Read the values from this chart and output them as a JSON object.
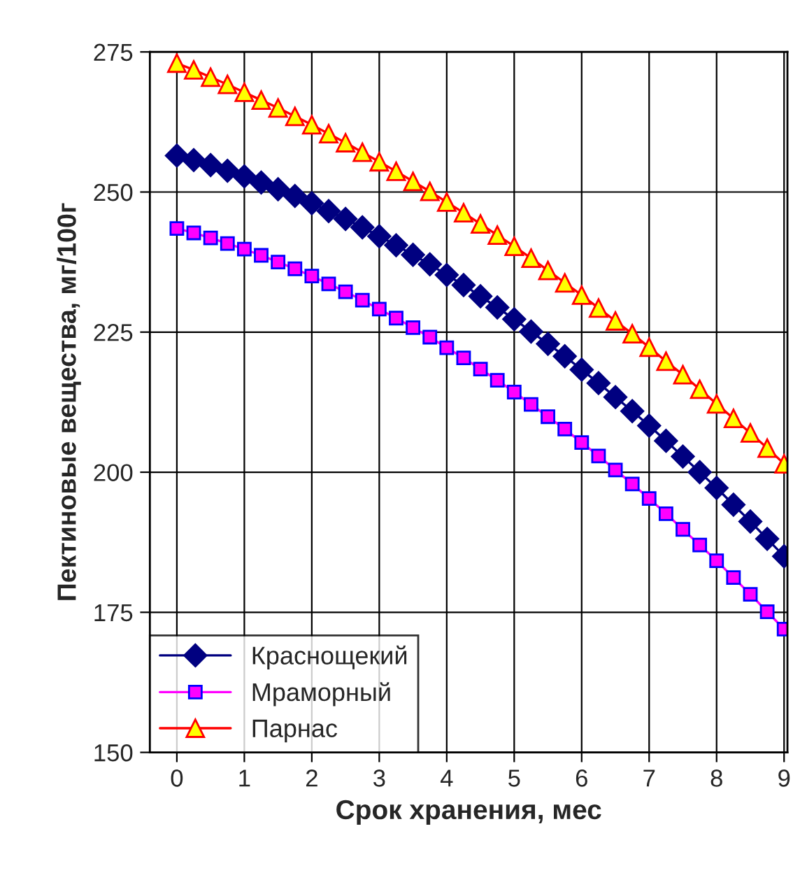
{
  "chart_data": {
    "type": "line",
    "xlabel": "Срок хранения, мес",
    "ylabel": "Пектиновые вещества, мг/100г",
    "x": [
      0,
      0.25,
      0.5,
      0.75,
      1,
      1.25,
      1.5,
      1.75,
      2,
      2.25,
      2.5,
      2.75,
      3,
      3.25,
      3.5,
      3.75,
      4,
      4.25,
      4.5,
      4.75,
      5,
      5.25,
      5.5,
      5.75,
      6,
      6.25,
      6.5,
      6.75,
      7,
      7.25,
      7.5,
      7.75,
      8,
      8.25,
      8.5,
      8.75,
      9
    ],
    "series": [
      {
        "name": "Краснощекий",
        "color": "#000080",
        "marker": "diamond",
        "values": [
          256.5,
          255.7,
          254.8,
          253.8,
          252.8,
          251.7,
          250.5,
          249.3,
          248.0,
          246.6,
          245.2,
          243.7,
          242.1,
          240.5,
          238.8,
          237.1,
          235.2,
          233.4,
          231.4,
          229.4,
          227.3,
          225.1,
          222.9,
          220.7,
          218.3,
          215.9,
          213.4,
          210.9,
          208.3,
          205.6,
          202.8,
          200.0,
          197.2,
          194.2,
          191.2,
          188.1,
          185.0
        ]
      },
      {
        "name": "Мраморный",
        "color": "#ff00ff",
        "marker": "square",
        "values": [
          243.5,
          242.7,
          241.8,
          240.8,
          239.8,
          238.7,
          237.5,
          236.3,
          235.0,
          233.6,
          232.2,
          230.7,
          229.1,
          227.5,
          225.8,
          224.1,
          222.2,
          220.4,
          218.4,
          216.4,
          214.3,
          212.1,
          209.9,
          207.7,
          205.3,
          202.9,
          200.4,
          197.9,
          195.3,
          192.6,
          189.8,
          187.0,
          184.2,
          181.2,
          178.2,
          175.1,
          172.0
        ]
      },
      {
        "name": "Парнас",
        "color": "#ff0000",
        "marker": "triangle",
        "values": [
          273.0,
          271.8,
          270.5,
          269.2,
          267.8,
          266.4,
          265.0,
          263.5,
          262.0,
          260.4,
          258.8,
          257.1,
          255.4,
          253.7,
          251.9,
          250.1,
          248.2,
          246.3,
          244.3,
          242.3,
          240.3,
          238.2,
          236.0,
          233.8,
          231.6,
          229.3,
          227.0,
          224.7,
          222.3,
          219.8,
          217.4,
          214.8,
          212.2,
          209.6,
          207.0,
          204.3,
          201.5
        ]
      }
    ],
    "xlim": [
      -0.4,
      9.05
    ],
    "xticks": [
      0,
      1,
      2,
      3,
      4,
      5,
      6,
      7,
      8,
      9
    ],
    "ylim": [
      150,
      275
    ],
    "yticks": [
      150,
      175,
      200,
      225,
      250,
      275
    ],
    "grid": true,
    "legend": "bottom left",
    "line_style": "solid"
  }
}
